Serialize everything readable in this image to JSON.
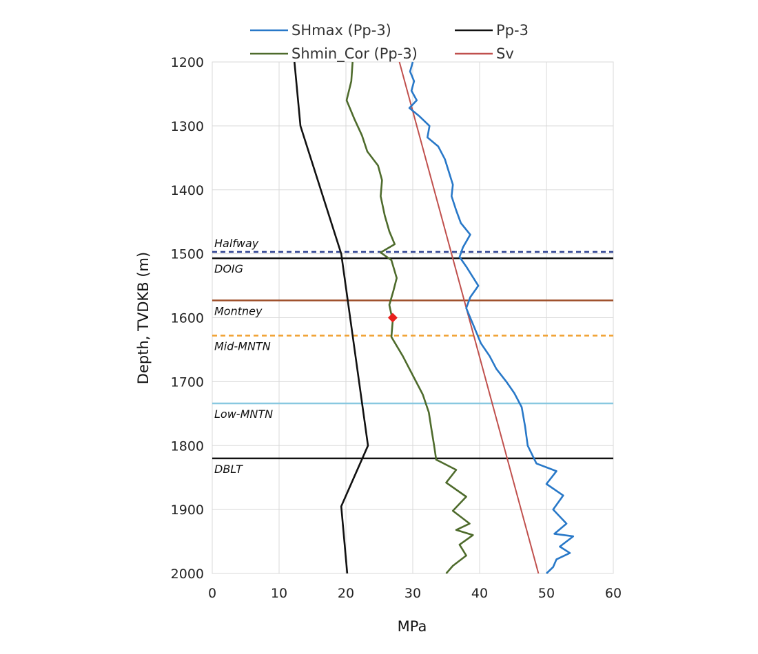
{
  "chart_data": {
    "type": "line",
    "xlabel": "MPa",
    "ylabel": "Depth, TVDKB (m)",
    "xlim": [
      0,
      60
    ],
    "ylim": [
      1200,
      2000
    ],
    "y_inverted": true,
    "xticks": [
      0,
      10,
      20,
      30,
      40,
      50,
      60
    ],
    "yticks": [
      1200,
      1300,
      1400,
      1500,
      1600,
      1700,
      1800,
      1900,
      2000
    ],
    "grid": true,
    "legend_position": "top",
    "legend": [
      {
        "label": "SHmax (Pp-3)",
        "color": "#2878c8"
      },
      {
        "label": "Pp-3",
        "color": "#111111"
      },
      {
        "label": "Shmin_Cor (Pp-3)",
        "color": "#4e6b2c"
      },
      {
        "label": "Sv",
        "color": "#c0504d"
      }
    ],
    "series": [
      {
        "name": "SHmax (Pp-3)",
        "color": "#2878c8",
        "points": [
          [
            30,
            1200
          ],
          [
            29.6,
            1215
          ],
          [
            30.2,
            1230
          ],
          [
            29.8,
            1245
          ],
          [
            30.6,
            1260
          ],
          [
            29.5,
            1272
          ],
          [
            31,
            1285
          ],
          [
            32.5,
            1300
          ],
          [
            32.2,
            1318
          ],
          [
            33.8,
            1332
          ],
          [
            34.8,
            1352
          ],
          [
            35.4,
            1372
          ],
          [
            36,
            1392
          ],
          [
            35.8,
            1410
          ],
          [
            36.5,
            1432
          ],
          [
            37.2,
            1452
          ],
          [
            38.6,
            1470
          ],
          [
            37.5,
            1490
          ],
          [
            37,
            1505
          ],
          [
            38,
            1520
          ],
          [
            39.8,
            1550
          ],
          [
            38.6,
            1568
          ],
          [
            38,
            1585
          ],
          [
            39,
            1610
          ],
          [
            40.2,
            1640
          ],
          [
            41.5,
            1660
          ],
          [
            42.5,
            1680
          ],
          [
            44,
            1700
          ],
          [
            45.2,
            1718
          ],
          [
            46.3,
            1740
          ],
          [
            46.8,
            1770
          ],
          [
            47.2,
            1800
          ],
          [
            48.5,
            1828
          ],
          [
            51.5,
            1840
          ],
          [
            50,
            1860
          ],
          [
            52.5,
            1878
          ],
          [
            51,
            1900
          ],
          [
            53,
            1922
          ],
          [
            51.2,
            1938
          ],
          [
            54,
            1942
          ],
          [
            52,
            1958
          ],
          [
            53.5,
            1968
          ],
          [
            51.5,
            1978
          ],
          [
            51,
            1990
          ],
          [
            50,
            2000
          ]
        ]
      },
      {
        "name": "Pp-3",
        "color": "#111111",
        "points": [
          [
            12.3,
            1200
          ],
          [
            13.2,
            1300
          ],
          [
            19.3,
            1500
          ],
          [
            23.3,
            1800
          ],
          [
            19.3,
            1895
          ],
          [
            20.2,
            2000
          ]
        ]
      },
      {
        "name": "Shmin_Cor (Pp-3)",
        "color": "#4e6b2c",
        "points": [
          [
            21,
            1200
          ],
          [
            20.8,
            1230
          ],
          [
            20.1,
            1260
          ],
          [
            21.3,
            1290
          ],
          [
            22.4,
            1315
          ],
          [
            23.2,
            1340
          ],
          [
            24.8,
            1362
          ],
          [
            25.4,
            1385
          ],
          [
            25.2,
            1410
          ],
          [
            25.8,
            1440
          ],
          [
            26.5,
            1465
          ],
          [
            27.3,
            1485
          ],
          [
            25.2,
            1498
          ],
          [
            26.8,
            1510
          ],
          [
            27.6,
            1538
          ],
          [
            27.1,
            1558
          ],
          [
            26.5,
            1580
          ],
          [
            27,
            1605
          ],
          [
            26.8,
            1630
          ],
          [
            28.5,
            1660
          ],
          [
            30,
            1690
          ],
          [
            31.5,
            1720
          ],
          [
            32.4,
            1748
          ],
          [
            32.8,
            1775
          ],
          [
            33.2,
            1800
          ],
          [
            33.5,
            1822
          ],
          [
            36.5,
            1838
          ],
          [
            35,
            1858
          ],
          [
            38,
            1880
          ],
          [
            36,
            1902
          ],
          [
            38.5,
            1922
          ],
          [
            36.5,
            1932
          ],
          [
            39,
            1940
          ],
          [
            37,
            1955
          ],
          [
            38,
            1972
          ],
          [
            36,
            1988
          ],
          [
            35,
            2000
          ]
        ]
      },
      {
        "name": "Sv",
        "color": "#c0504d",
        "points": [
          [
            28,
            1200
          ],
          [
            48.8,
            2000
          ]
        ]
      }
    ],
    "markers": [
      {
        "x": 27,
        "y": 1600,
        "shape": "diamond",
        "color": "#e8201c"
      }
    ],
    "formations": [
      {
        "label": "Halfway",
        "depth": 1497,
        "color": "#2a3f8f",
        "dashed": true,
        "label_side": "above"
      },
      {
        "label": "DOIG",
        "depth": 1507,
        "color": "#111111",
        "dashed": false,
        "label_side": "below"
      },
      {
        "label": "Montney",
        "depth": 1573,
        "color": "#a0522d",
        "dashed": false,
        "label_side": "below"
      },
      {
        "label": "Mid-MNTN",
        "depth": 1628,
        "color": "#f0a030",
        "dashed": true,
        "label_side": "below"
      },
      {
        "label": "Low-MNTN",
        "depth": 1734,
        "color": "#88c8e0",
        "dashed": false,
        "label_side": "below"
      },
      {
        "label": "DBLT",
        "depth": 1820,
        "color": "#111111",
        "dashed": false,
        "label_side": "below"
      }
    ]
  }
}
